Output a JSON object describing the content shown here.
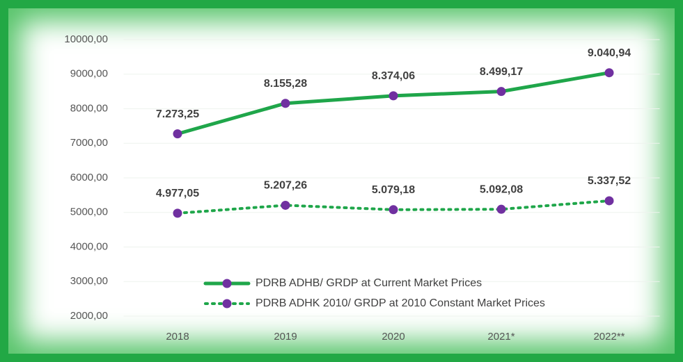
{
  "chart_data": {
    "type": "line",
    "categories": [
      "2018",
      "2019",
      "2020",
      "2021*",
      "2022**"
    ],
    "series": [
      {
        "name": "PDRB ADHB/ GRDP at Current Market Prices",
        "color": "#1fa64a",
        "marker_color": "#7030a0",
        "line_style": "solid",
        "values": [
          7273.25,
          8155.28,
          8374.06,
          8499.17,
          9040.94
        ],
        "value_labels": [
          "7.273,25",
          "8.155,28",
          "8.374,06",
          "8.499,17",
          "9.040,94"
        ]
      },
      {
        "name": "PDRB ADHK 2010/ GRDP at 2010 Constant Market Prices",
        "color": "#1fa64a",
        "marker_color": "#7030a0",
        "line_style": "dotted",
        "values": [
          4977.05,
          5207.26,
          5079.18,
          5092.08,
          5337.52
        ],
        "value_labels": [
          "4.977,05",
          "5.207,26",
          "5.079,18",
          "5.092,08",
          "5.337,52"
        ]
      }
    ],
    "ylim": [
      2000,
      10000
    ],
    "yticks": [
      {
        "value": 2000,
        "label": "2000,00"
      },
      {
        "value": 3000,
        "label": "3000,00"
      },
      {
        "value": 4000,
        "label": "4000,00"
      },
      {
        "value": 5000,
        "label": "5000,00"
      },
      {
        "value": 6000,
        "label": "6000,00"
      },
      {
        "value": 7000,
        "label": "7000,00"
      },
      {
        "value": 8000,
        "label": "8000,00"
      },
      {
        "value": 9000,
        "label": "9000,00"
      },
      {
        "value": 10000,
        "label": "10000,00"
      }
    ],
    "grid": true,
    "legend": "lower center"
  }
}
